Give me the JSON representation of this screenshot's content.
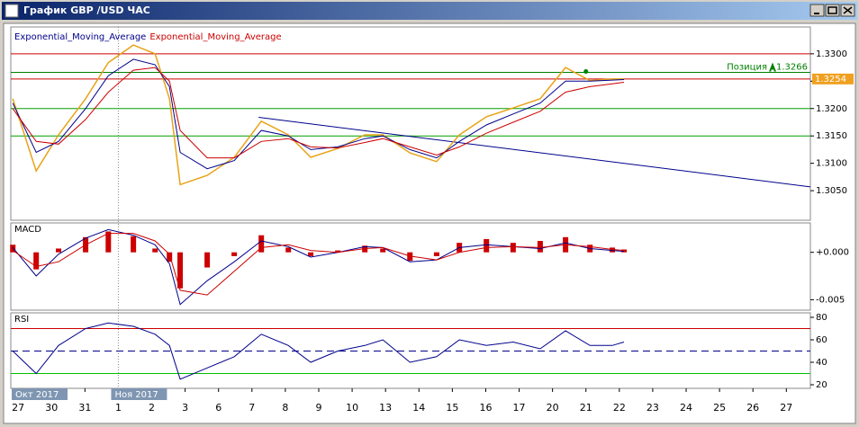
{
  "window": {
    "title": "График GBP /USD  ЧАС"
  },
  "x_axis": {
    "x": [
      -0.16,
      0.54,
      1.21,
      2.02,
      2.7,
      3.45,
      4.1,
      4.53,
      4.85,
      5.66,
      6.47,
      7.28,
      8.09,
      8.76,
      9.57,
      10.38,
      10.92,
      11.73,
      12.53,
      13.21,
      14.02,
      14.82,
      15.63,
      16.39,
      17.12,
      17.79,
      18.14
    ],
    "xlim": [
      -0.22,
      23.72
    ],
    "xticks": [
      {
        "value": 0,
        "label": "27"
      },
      {
        "value": 1,
        "label": "30"
      },
      {
        "value": 2,
        "label": "31"
      },
      {
        "value": 3,
        "label": "1"
      },
      {
        "value": 4,
        "label": "2"
      },
      {
        "value": 5,
        "label": "3"
      },
      {
        "value": 6,
        "label": "6"
      },
      {
        "value": 7,
        "label": "7"
      },
      {
        "value": 8,
        "label": "8"
      },
      {
        "value": 9,
        "label": "9"
      },
      {
        "value": 10,
        "label": "10"
      },
      {
        "value": 11,
        "label": "13"
      },
      {
        "value": 12,
        "label": "14"
      },
      {
        "value": 13,
        "label": "15"
      },
      {
        "value": 14,
        "label": "16"
      },
      {
        "value": 15,
        "label": "17"
      },
      {
        "value": 16,
        "label": "20"
      },
      {
        "value": 17,
        "label": "21"
      },
      {
        "value": 18,
        "label": "22"
      },
      {
        "value": 19,
        "label": "23"
      },
      {
        "value": 20,
        "label": "24"
      },
      {
        "value": 21,
        "label": "25"
      },
      {
        "value": 22,
        "label": "26"
      },
      {
        "value": 23,
        "label": "27"
      }
    ],
    "months": [
      "Окт 2017",
      "Ноя 2017"
    ]
  },
  "chart_data": [
    {
      "type": "line",
      "ylim": [
        1.2996,
        1.3349
      ],
      "yticks": [
        {
          "value": 1.305,
          "label": "1.3050"
        },
        {
          "value": 1.31,
          "label": "1.3100"
        },
        {
          "value": 1.315,
          "label": "1.3150"
        },
        {
          "value": 1.32,
          "label": "1.3200"
        },
        {
          "value": 1.325,
          "label": "1.3250"
        },
        {
          "value": 1.33,
          "label": "1.3300"
        }
      ],
      "series": [
        {
          "color": "#e8a317",
          "values": [
            1.3218,
            1.3086,
            1.3152,
            1.3218,
            1.3284,
            1.3316,
            1.33,
            1.3218,
            1.3061,
            1.3078,
            1.3111,
            1.3177,
            1.3152,
            1.3111,
            1.3127,
            1.3152,
            1.3152,
            1.3119,
            1.3103,
            1.3152,
            1.3185,
            1.3201,
            1.3218,
            1.3275,
            1.3251,
            1.3254,
            1.3254
          ]
        },
        {
          "name": "Exponential_Moving_Average",
          "color": "#00008b",
          "values": [
            1.321,
            1.312,
            1.314,
            1.32,
            1.326,
            1.329,
            1.328,
            1.324,
            1.312,
            1.309,
            1.3105,
            1.316,
            1.315,
            1.3125,
            1.313,
            1.3145,
            1.315,
            1.3125,
            1.311,
            1.314,
            1.317,
            1.319,
            1.321,
            1.325,
            1.325,
            1.3252,
            1.3253
          ]
        },
        {
          "name": "Exponential_Moving_Average",
          "color": "#cc0000",
          "values": [
            1.32,
            1.314,
            1.3135,
            1.318,
            1.323,
            1.327,
            1.3275,
            1.325,
            1.316,
            1.311,
            1.311,
            1.314,
            1.3145,
            1.313,
            1.3128,
            1.3138,
            1.3145,
            1.313,
            1.3115,
            1.313,
            1.3155,
            1.3175,
            1.3195,
            1.323,
            1.324,
            1.3245,
            1.3248
          ]
        }
      ],
      "levels": [
        {
          "value": 1.33,
          "color": "#cc0000"
        },
        {
          "value": 1.3266,
          "color": "#008000"
        },
        {
          "value": 1.3254,
          "color": "#cc0000"
        },
        {
          "value": 1.32,
          "color": "#00a000"
        },
        {
          "value": 1.315,
          "color": "#00a000"
        }
      ],
      "trendline": {
        "x": [
          7.2,
          23.72
        ],
        "values": [
          1.3184,
          1.3057
        ],
        "color": "#00008b"
      },
      "position": {
        "label": "Позиция",
        "value": 1.3266,
        "color": "#008000"
      },
      "current_price": {
        "value": 1.3254,
        "color": "#f0a020"
      }
    },
    {
      "type": "macd",
      "title": "MACD",
      "ylim": [
        -0.0061,
        0.0031
      ],
      "yticks": [
        {
          "value": 0,
          "label": "+0.000"
        },
        {
          "value": -0.005,
          "label": "-0.005"
        }
      ],
      "histogram": {
        "color": "#cc0000",
        "values": [
          0.0008,
          -0.0018,
          0.0004,
          0.0016,
          0.0022,
          0.0017,
          0.0004,
          -0.001,
          -0.0038,
          -0.0016,
          -0.0004,
          0.0018,
          0.0005,
          -0.0004,
          0.0002,
          0.0007,
          0.0004,
          -0.0009,
          -0.0004,
          0.001,
          0.0014,
          0.001,
          0.0012,
          0.0016,
          0.0008,
          0.0005,
          0.0003
        ]
      },
      "series": [
        {
          "color": "#00008b",
          "values": [
            0.0005,
            -0.0025,
            -0.0002,
            0.0015,
            0.0024,
            0.0018,
            0.0008,
            -0.0012,
            -0.0055,
            -0.003,
            -0.001,
            0.0012,
            0.0006,
            -0.0005,
            0.0,
            0.0006,
            0.0005,
            -0.001,
            -0.0008,
            0.0005,
            0.0008,
            0.0006,
            0.0004,
            0.001,
            0.0004,
            0.0002,
            0.0001
          ]
        },
        {
          "color": "#cc0000",
          "values": [
            0.0002,
            -0.0015,
            -0.001,
            0.0008,
            0.002,
            0.002,
            0.0012,
            -0.0002,
            -0.004,
            -0.0045,
            -0.002,
            0.0005,
            0.0008,
            0.0002,
            0.0,
            0.0004,
            0.0005,
            -0.0004,
            -0.0008,
            0.0,
            0.0005,
            0.0006,
            0.0005,
            0.0008,
            0.0006,
            0.0003,
            0.0002
          ]
        }
      ]
    },
    {
      "type": "line",
      "title": "RSI",
      "ylim": [
        16.8,
        84
      ],
      "yticks": [
        20,
        40,
        60,
        80
      ],
      "series": [
        {
          "color": "#00008b",
          "values": [
            50,
            30,
            55,
            70,
            75,
            72,
            65,
            55,
            25,
            35,
            45,
            65,
            55,
            40,
            50,
            55,
            60,
            40,
            45,
            60,
            55,
            58,
            52,
            68,
            55,
            55,
            58
          ]
        }
      ],
      "levels": [
        {
          "value": 70,
          "color": "#cc0000"
        },
        {
          "value": 50,
          "color": "#00008b",
          "dashed": true
        },
        {
          "value": 30,
          "color": "#00c000"
        }
      ]
    }
  ]
}
